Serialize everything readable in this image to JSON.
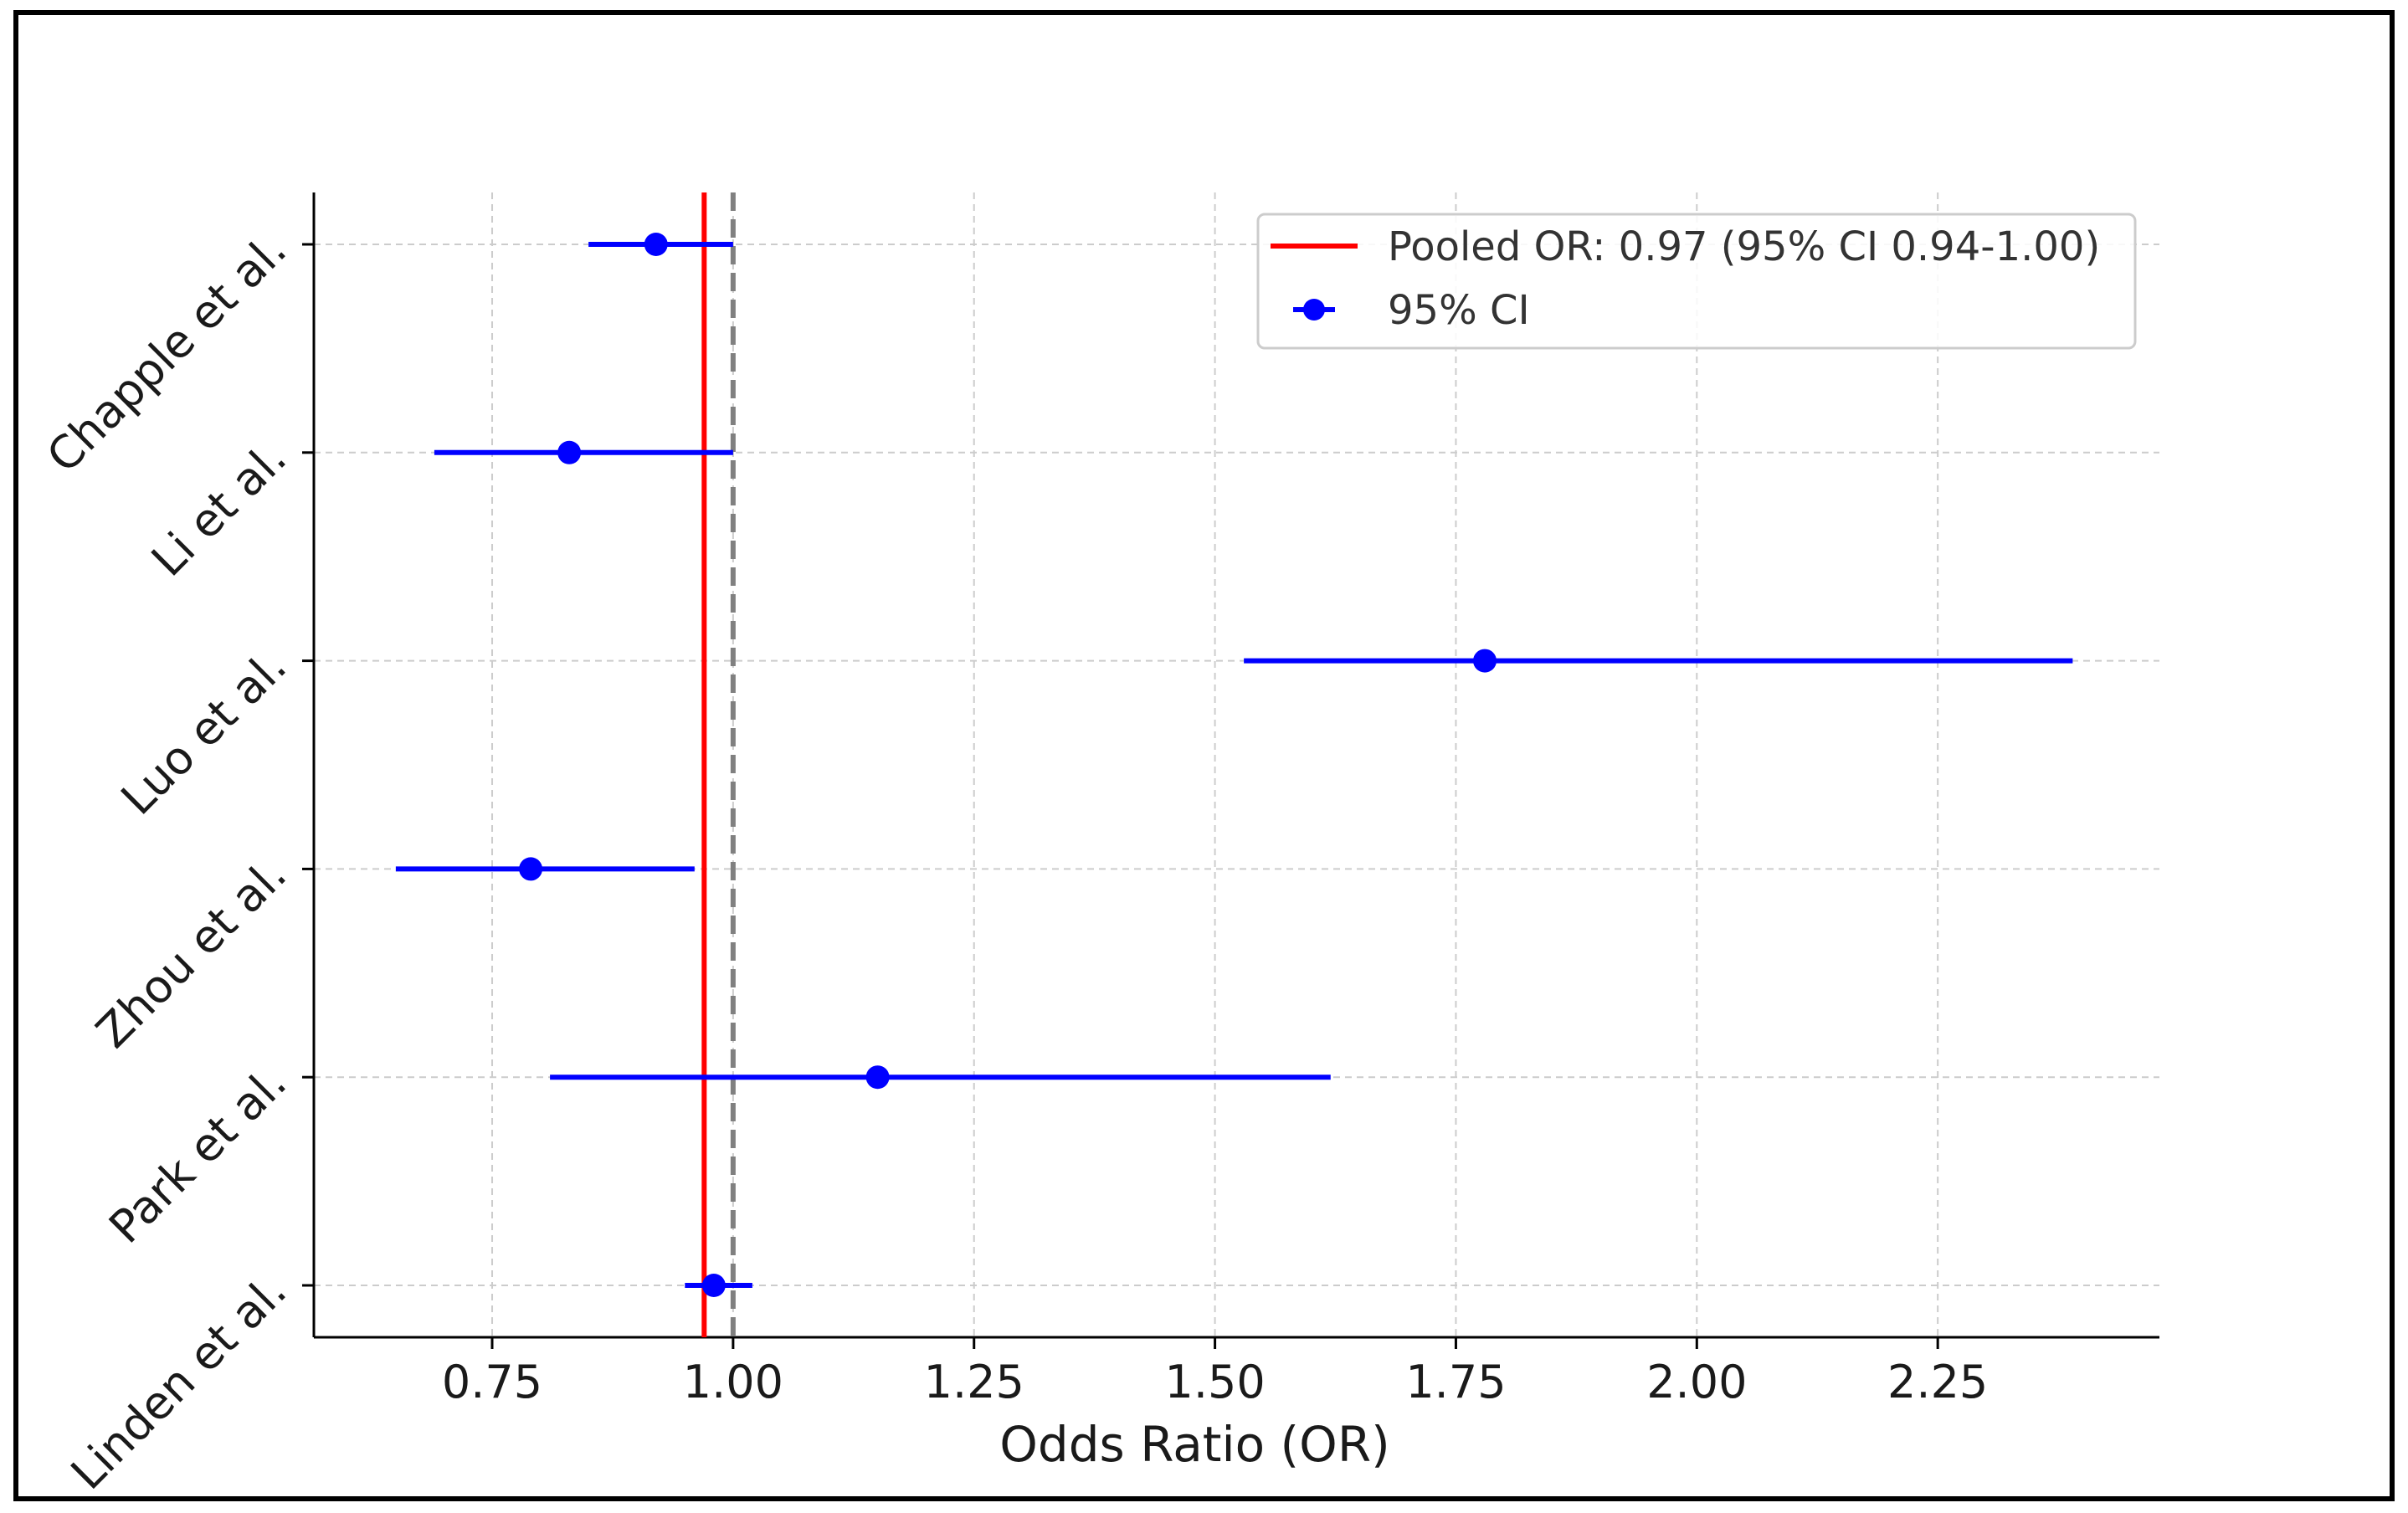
{
  "chart_data": {
    "type": "forest",
    "title": "",
    "xlabel": "Odds Ratio (OR)",
    "ylabel": "",
    "xlim": [
      0.565,
      2.48
    ],
    "xticks": [
      0.75,
      1.0,
      1.25,
      1.5,
      1.75,
      2.0,
      2.25
    ],
    "xtick_labels": [
      "0.75",
      "1.00",
      "1.25",
      "1.50",
      "1.75",
      "2.00",
      "2.25"
    ],
    "grid": true,
    "legend_position": "top-right",
    "studies": [
      {
        "label": "Chapple et al.",
        "or": 0.92,
        "ci_low": 0.85,
        "ci_high": 1.0
      },
      {
        "label": "Li et al.",
        "or": 0.83,
        "ci_low": 0.69,
        "ci_high": 1.0
      },
      {
        "label": "Luo et al.",
        "or": 1.78,
        "ci_low": 1.53,
        "ci_high": 2.39
      },
      {
        "label": "Zhou et al.",
        "or": 0.79,
        "ci_low": 0.65,
        "ci_high": 0.96
      },
      {
        "label": "Park et al.",
        "or": 1.15,
        "ci_low": 0.81,
        "ci_high": 1.62
      },
      {
        "label": "Linden et al.",
        "or": 0.98,
        "ci_low": 0.95,
        "ci_high": 1.02
      }
    ],
    "pooled": {
      "or": 0.97,
      "label": "Pooled OR: 0.97 (95% CI 0.94-1.00)"
    },
    "reference_line": 1.0,
    "series_label": "95% CI",
    "colors": {
      "points": "#0000ff",
      "pooled": "#ff0000",
      "reference": "#808080",
      "grid": "#cccccc"
    }
  }
}
